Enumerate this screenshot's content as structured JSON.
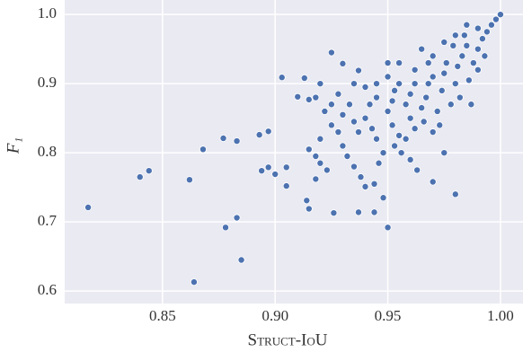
{
  "chart_data": {
    "type": "scatter",
    "x_label": "Struct-IoU",
    "y_label": "F₁",
    "color": "#4c72b0",
    "grid": true,
    "xlim": [
      0.8066,
      1.01
    ],
    "ylim": [
      0.582,
      1.021
    ],
    "xticks": [
      0.85,
      {
        "value": 0.9,
        "label": "0.90"
      },
      0.95,
      {
        "value": 1.0,
        "label": "1.00"
      }
    ],
    "yticks": [
      0.6,
      0.7,
      0.8,
      0.9,
      {
        "value": 1.0,
        "label": "1.0"
      }
    ],
    "x": [
      0.817,
      0.84,
      0.844,
      0.862,
      0.864,
      0.868,
      0.877,
      0.878,
      0.883,
      0.883,
      0.885,
      0.893,
      0.894,
      0.897,
      0.897,
      0.9,
      0.903,
      0.905,
      0.905,
      0.913,
      0.91,
      0.915,
      0.914,
      0.915,
      0.925,
      0.926,
      0.93,
      0.937,
      0.937,
      0.94,
      0.944,
      0.95,
      0.95,
      0.97,
      0.98,
      0.918,
      0.922,
      0.925,
      0.928,
      0.92,
      0.915,
      0.918,
      0.92,
      0.923,
      0.918,
      0.93,
      0.933,
      0.935,
      0.937,
      0.93,
      0.932,
      0.935,
      0.938,
      0.94,
      0.942,
      0.945,
      0.943,
      0.945,
      0.948,
      0.946,
      0.944,
      0.948,
      0.95,
      0.952,
      0.953,
      0.955,
      0.952,
      0.955,
      0.953,
      0.956,
      0.958,
      0.96,
      0.962,
      0.96,
      0.962,
      0.958,
      0.96,
      0.963,
      0.965,
      0.967,
      0.968,
      0.97,
      0.966,
      0.97,
      0.972,
      0.974,
      0.975,
      0.976,
      0.973,
      0.978,
      0.98,
      0.981,
      0.983,
      0.985,
      0.982,
      0.986,
      0.988,
      0.99,
      0.992,
      0.994,
      0.996,
      0.998,
      1.0,
      0.984,
      0.979,
      0.987,
      0.99,
      0.993,
      0.975,
      0.968,
      0.965,
      0.962,
      0.955,
      0.95,
      0.945,
      0.94,
      0.935,
      0.928,
      0.92,
      0.925,
      0.97,
      0.98,
      0.975,
      0.99,
      0.985
    ],
    "y": [
      0.721,
      0.765,
      0.774,
      0.761,
      0.613,
      0.805,
      0.821,
      0.692,
      0.817,
      0.706,
      0.645,
      0.826,
      0.774,
      0.831,
      0.779,
      0.769,
      0.909,
      0.752,
      0.779,
      0.908,
      0.881,
      0.877,
      0.731,
      0.719,
      0.945,
      0.713,
      0.929,
      0.919,
      0.714,
      0.751,
      0.714,
      0.692,
      0.93,
      0.758,
      0.74,
      0.88,
      0.86,
      0.84,
      0.83,
      0.82,
      0.805,
      0.795,
      0.785,
      0.775,
      0.762,
      0.855,
      0.87,
      0.845,
      0.83,
      0.81,
      0.795,
      0.78,
      0.765,
      0.85,
      0.87,
      0.88,
      0.835,
      0.82,
      0.8,
      0.785,
      0.755,
      0.735,
      0.86,
      0.875,
      0.89,
      0.9,
      0.84,
      0.825,
      0.81,
      0.8,
      0.87,
      0.885,
      0.9,
      0.85,
      0.835,
      0.82,
      0.79,
      0.775,
      0.865,
      0.88,
      0.9,
      0.91,
      0.845,
      0.83,
      0.86,
      0.89,
      0.915,
      0.93,
      0.84,
      0.87,
      0.9,
      0.925,
      0.94,
      0.955,
      0.88,
      0.905,
      0.93,
      0.95,
      0.965,
      0.975,
      0.985,
      0.993,
      1.0,
      0.97,
      0.955,
      0.87,
      0.92,
      0.94,
      0.8,
      0.93,
      0.95,
      0.92,
      0.93,
      0.91,
      0.9,
      0.895,
      0.9,
      0.885,
      0.9,
      0.87,
      0.94,
      0.97,
      0.96,
      0.98,
      0.985
    ]
  }
}
